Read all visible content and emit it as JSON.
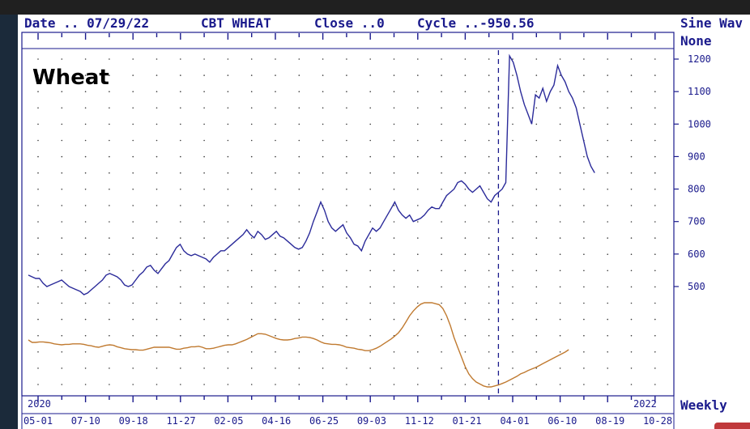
{
  "header": {
    "date_label": "Date .. 07/29/22",
    "symbol": "CBT WHEAT",
    "close_label": "Close ..0",
    "cycle_label": "Cycle ..-950.56",
    "sine_label": "Sine Wav",
    "none_label": "None",
    "weekly_label": "Weekly"
  },
  "chart_data": {
    "type": "line",
    "title": "Wheat",
    "year_labels": [
      "2020",
      "2022"
    ],
    "x_tick_labels": [
      "05-01",
      "07-10",
      "09-18",
      "11-27",
      "02-05",
      "04-16",
      "06-25",
      "09-03",
      "11-12",
      "01-21",
      "04-01",
      "06-10",
      "08-19",
      "10-28"
    ],
    "y_ticks": [
      500,
      600,
      700,
      800,
      900,
      1000,
      1100,
      1200
    ],
    "ylim": [
      410,
      1215
    ],
    "grid": true,
    "cursor_week": 127,
    "colors": {
      "price": "#2b2b9a",
      "cycle": "#c07a30",
      "axis": "#1a1a8c",
      "grid": "#3a3a3a"
    },
    "series": [
      {
        "values": [
          535,
          530,
          525,
          525,
          510,
          500,
          505,
          510,
          515,
          520,
          510,
          500,
          495,
          490,
          485,
          475,
          480,
          490,
          500,
          510,
          520,
          535,
          540,
          535,
          530,
          520,
          505,
          500,
          505,
          520,
          535,
          545,
          560,
          565,
          550,
          540,
          555,
          570,
          580,
          600,
          620,
          630,
          610,
          600,
          595,
          600,
          595,
          590,
          585,
          575,
          590,
          600,
          610,
          610,
          620,
          630,
          640,
          650,
          660,
          675,
          660,
          650,
          670,
          660,
          645,
          650,
          660,
          670,
          655,
          650,
          640,
          630,
          620,
          615,
          620,
          640,
          665,
          700,
          730,
          760,
          735,
          700,
          680,
          670,
          680,
          690,
          665,
          650,
          630,
          625,
          610,
          640,
          660,
          680,
          670,
          680,
          700,
          720,
          740,
          760,
          735,
          720,
          710,
          720,
          700,
          705,
          710,
          720,
          735,
          745,
          740,
          740,
          760,
          780,
          790,
          800,
          820,
          825,
          815,
          800,
          790,
          800,
          810,
          790,
          770,
          760,
          780,
          790,
          800,
          820,
          1210,
          1190,
          1150,
          1100,
          1060,
          1030,
          1000,
          1090,
          1080,
          1110,
          1070,
          1100,
          1120,
          1180,
          1150,
          1130,
          1100,
          1080,
          1050,
          1000,
          950,
          900,
          870,
          850
        ]
      },
      {
        "values": [
          145,
          140,
          140,
          141,
          141,
          140,
          139,
          137,
          136,
          135,
          136,
          136,
          137,
          137,
          137,
          136,
          134,
          133,
          131,
          130,
          132,
          134,
          135,
          134,
          131,
          129,
          127,
          126,
          125,
          125,
          124,
          124,
          126,
          128,
          130,
          130,
          130,
          130,
          130,
          128,
          126,
          126,
          128,
          129,
          131,
          131,
          132,
          130,
          127,
          127,
          128,
          130,
          132,
          134,
          135,
          135,
          137,
          140,
          143,
          146,
          150,
          154,
          158,
          158,
          157,
          154,
          151,
          148,
          146,
          145,
          145,
          146,
          148,
          149,
          151,
          151,
          150,
          148,
          145,
          141,
          138,
          137,
          136,
          136,
          135,
          133,
          130,
          129,
          128,
          126,
          125,
          123,
          123,
          125,
          128,
          132,
          137,
          142,
          147,
          153,
          160,
          170,
          182,
          195,
          205,
          213,
          219,
          222,
          222,
          222,
          220,
          218,
          210,
          195,
          175,
          150,
          130,
          110,
          90,
          75,
          65,
          58,
          54,
          50,
          48,
          48,
          50,
          52,
          55,
          58,
          62,
          66,
          70,
          75,
          78,
          82,
          85,
          88,
          92,
          96,
          100,
          104,
          108,
          112,
          116,
          120,
          125
        ]
      }
    ]
  }
}
